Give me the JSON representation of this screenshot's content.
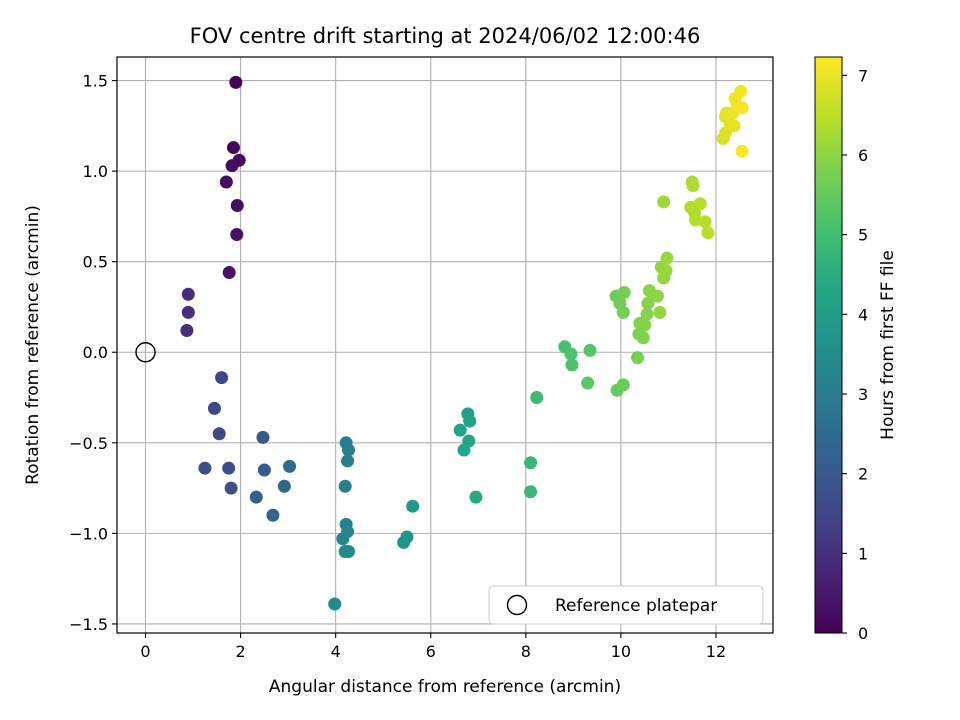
{
  "chart_data": {
    "type": "scatter",
    "title": "FOV centre drift starting at 2024/06/02 12:00:46",
    "xlabel": "Angular distance from reference (arcmin)",
    "ylabel": "Rotation from reference (arcmin)",
    "xlim": [
      -0.6,
      13.2
    ],
    "ylim": [
      -1.55,
      1.63
    ],
    "xticks": [
      0,
      2,
      4,
      6,
      8,
      10,
      12
    ],
    "xtick_labels": [
      "0",
      "2",
      "4",
      "6",
      "8",
      "10",
      "12"
    ],
    "yticks": [
      -1.5,
      -1.0,
      -0.5,
      0.0,
      0.5,
      1.0,
      1.5
    ],
    "ytick_labels": [
      "−1.5",
      "−1.0",
      "−0.5",
      "0.0",
      "0.5",
      "1.0",
      "1.5"
    ],
    "grid": true,
    "colormap": "viridis",
    "colorbar": {
      "label": "Hours from first FF file",
      "range": [
        0,
        7.23
      ],
      "ticks": [
        0,
        1,
        2,
        3,
        4,
        5,
        6,
        7
      ],
      "tick_labels": [
        "0",
        "1",
        "2",
        "3",
        "4",
        "5",
        "6",
        "7"
      ]
    },
    "legend": {
      "placement": "lower-right",
      "entries": [
        {
          "label": "Reference platepar",
          "marker": "open-circle"
        }
      ]
    },
    "reference_point": {
      "x": 0.0,
      "y": 0.0
    },
    "points": [
      {
        "x": 1.9,
        "y": 1.49,
        "c": 0.05
      },
      {
        "x": 1.85,
        "y": 1.13,
        "c": 0.1
      },
      {
        "x": 1.97,
        "y": 1.06,
        "c": 0.15
      },
      {
        "x": 1.82,
        "y": 1.03,
        "c": 0.2
      },
      {
        "x": 1.7,
        "y": 0.94,
        "c": 0.25
      },
      {
        "x": 1.93,
        "y": 0.81,
        "c": 0.3
      },
      {
        "x": 1.92,
        "y": 0.65,
        "c": 0.35
      },
      {
        "x": 1.76,
        "y": 0.44,
        "c": 0.4
      },
      {
        "x": 0.9,
        "y": 0.32,
        "c": 0.9
      },
      {
        "x": 0.9,
        "y": 0.22,
        "c": 0.95
      },
      {
        "x": 0.87,
        "y": 0.12,
        "c": 1.0
      },
      {
        "x": 1.6,
        "y": -0.14,
        "c": 1.5
      },
      {
        "x": 1.45,
        "y": -0.31,
        "c": 1.55
      },
      {
        "x": 1.55,
        "y": -0.45,
        "c": 1.6
      },
      {
        "x": 1.25,
        "y": -0.64,
        "c": 1.65
      },
      {
        "x": 1.75,
        "y": -0.64,
        "c": 1.7
      },
      {
        "x": 1.8,
        "y": -0.75,
        "c": 1.75
      },
      {
        "x": 2.47,
        "y": -0.47,
        "c": 2.0
      },
      {
        "x": 2.5,
        "y": -0.65,
        "c": 2.1
      },
      {
        "x": 2.33,
        "y": -0.8,
        "c": 2.2
      },
      {
        "x": 2.68,
        "y": -0.9,
        "c": 2.3
      },
      {
        "x": 2.92,
        "y": -0.74,
        "c": 2.4
      },
      {
        "x": 3.03,
        "y": -0.63,
        "c": 2.5
      },
      {
        "x": 4.22,
        "y": -0.5,
        "c": 3.0
      },
      {
        "x": 4.27,
        "y": -0.54,
        "c": 3.05
      },
      {
        "x": 4.25,
        "y": -0.6,
        "c": 3.1
      },
      {
        "x": 4.2,
        "y": -0.74,
        "c": 3.15
      },
      {
        "x": 4.22,
        "y": -0.95,
        "c": 3.2
      },
      {
        "x": 4.25,
        "y": -0.99,
        "c": 3.25
      },
      {
        "x": 4.15,
        "y": -1.03,
        "c": 3.3
      },
      {
        "x": 4.2,
        "y": -1.1,
        "c": 3.35
      },
      {
        "x": 4.27,
        "y": -1.1,
        "c": 3.4
      },
      {
        "x": 3.98,
        "y": -1.39,
        "c": 3.45
      },
      {
        "x": 5.5,
        "y": -1.02,
        "c": 3.7
      },
      {
        "x": 5.43,
        "y": -1.05,
        "c": 3.75
      },
      {
        "x": 5.62,
        "y": -0.85,
        "c": 3.85
      },
      {
        "x": 6.78,
        "y": -0.34,
        "c": 4.1
      },
      {
        "x": 6.82,
        "y": -0.38,
        "c": 4.15
      },
      {
        "x": 6.62,
        "y": -0.43,
        "c": 4.2
      },
      {
        "x": 6.8,
        "y": -0.49,
        "c": 4.25
      },
      {
        "x": 6.7,
        "y": -0.54,
        "c": 4.3
      },
      {
        "x": 6.95,
        "y": -0.8,
        "c": 4.4
      },
      {
        "x": 8.1,
        "y": -0.61,
        "c": 4.8
      },
      {
        "x": 8.1,
        "y": -0.77,
        "c": 4.85
      },
      {
        "x": 8.23,
        "y": -0.25,
        "c": 4.9
      },
      {
        "x": 8.82,
        "y": 0.03,
        "c": 5.1
      },
      {
        "x": 8.95,
        "y": -0.01,
        "c": 5.15
      },
      {
        "x": 8.97,
        "y": -0.07,
        "c": 5.2
      },
      {
        "x": 9.35,
        "y": 0.01,
        "c": 5.3
      },
      {
        "x": 9.3,
        "y": -0.17,
        "c": 5.35
      },
      {
        "x": 9.92,
        "y": -0.21,
        "c": 5.5
      },
      {
        "x": 10.05,
        "y": -0.18,
        "c": 5.55
      },
      {
        "x": 9.9,
        "y": 0.31,
        "c": 5.6
      },
      {
        "x": 9.98,
        "y": 0.27,
        "c": 5.65
      },
      {
        "x": 10.05,
        "y": 0.22,
        "c": 5.7
      },
      {
        "x": 10.07,
        "y": 0.33,
        "c": 5.72
      },
      {
        "x": 10.35,
        "y": -0.03,
        "c": 5.75
      },
      {
        "x": 10.38,
        "y": 0.1,
        "c": 5.8
      },
      {
        "x": 10.47,
        "y": 0.08,
        "c": 5.82
      },
      {
        "x": 10.4,
        "y": 0.16,
        "c": 5.85
      },
      {
        "x": 10.5,
        "y": 0.15,
        "c": 5.88
      },
      {
        "x": 10.55,
        "y": 0.21,
        "c": 5.9
      },
      {
        "x": 10.57,
        "y": 0.27,
        "c": 5.92
      },
      {
        "x": 10.6,
        "y": 0.34,
        "c": 5.95
      },
      {
        "x": 10.77,
        "y": 0.31,
        "c": 6.0
      },
      {
        "x": 10.82,
        "y": 0.22,
        "c": 6.02
      },
      {
        "x": 10.85,
        "y": 0.47,
        "c": 6.05
      },
      {
        "x": 10.9,
        "y": 0.41,
        "c": 6.08
      },
      {
        "x": 10.95,
        "y": 0.45,
        "c": 6.1
      },
      {
        "x": 10.97,
        "y": 0.52,
        "c": 6.12
      },
      {
        "x": 10.9,
        "y": 0.83,
        "c": 6.15
      },
      {
        "x": 11.5,
        "y": 0.94,
        "c": 6.3
      },
      {
        "x": 11.52,
        "y": 0.92,
        "c": 6.32
      },
      {
        "x": 11.47,
        "y": 0.8,
        "c": 6.35
      },
      {
        "x": 11.55,
        "y": 0.77,
        "c": 6.38
      },
      {
        "x": 11.57,
        "y": 0.73,
        "c": 6.4
      },
      {
        "x": 11.67,
        "y": 0.82,
        "c": 6.42
      },
      {
        "x": 11.77,
        "y": 0.72,
        "c": 6.45
      },
      {
        "x": 11.83,
        "y": 0.66,
        "c": 6.48
      },
      {
        "x": 12.15,
        "y": 1.18,
        "c": 6.8
      },
      {
        "x": 12.2,
        "y": 1.21,
        "c": 6.85
      },
      {
        "x": 12.2,
        "y": 1.3,
        "c": 6.9
      },
      {
        "x": 12.22,
        "y": 1.32,
        "c": 6.92
      },
      {
        "x": 12.3,
        "y": 1.26,
        "c": 6.95
      },
      {
        "x": 12.38,
        "y": 1.25,
        "c": 6.97
      },
      {
        "x": 12.35,
        "y": 1.32,
        "c": 7.0
      },
      {
        "x": 12.4,
        "y": 1.4,
        "c": 7.05
      },
      {
        "x": 12.45,
        "y": 1.36,
        "c": 7.08
      },
      {
        "x": 12.52,
        "y": 1.44,
        "c": 7.1
      },
      {
        "x": 12.55,
        "y": 1.35,
        "c": 7.15
      },
      {
        "x": 12.55,
        "y": 1.11,
        "c": 7.2
      }
    ]
  }
}
